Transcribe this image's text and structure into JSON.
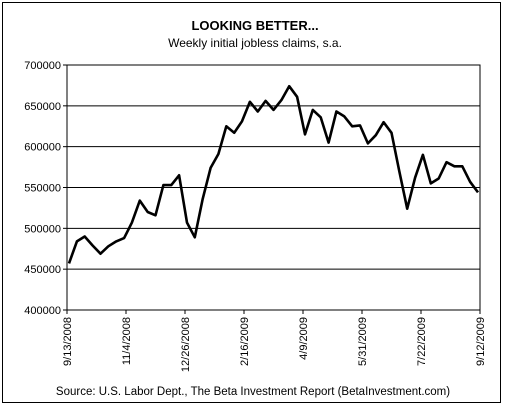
{
  "chart_data": {
    "type": "line",
    "title": "LOOKING BETTER...",
    "subtitle": "Weekly initial jobless claims, s.a.",
    "source": "Source: U.S. Labor Dept., The Beta Investment Report (BetaInvestment.com)",
    "ylim": [
      400000,
      700000
    ],
    "y_ticks": [
      "700000",
      "650000",
      "600000",
      "550000",
      "500000",
      "450000",
      "400000"
    ],
    "x_ticks": [
      "9/13/2008",
      "11/4/2008",
      "12/26/2008",
      "2/16/2009",
      "4/9/2009",
      "5/31/2009",
      "7/22/2009",
      "9/12/2009"
    ],
    "grid": true,
    "legend": "none",
    "line_color": "#000000",
    "series": [
      {
        "values": [
          457000,
          484000,
          490000,
          479000,
          469000,
          478000,
          484000,
          488000,
          507000,
          534000,
          520000,
          516000,
          553000,
          553000,
          565000,
          507000,
          489000,
          536000,
          574000,
          591000,
          625000,
          617000,
          631000,
          655000,
          643000,
          656000,
          645000,
          657000,
          674000,
          661000,
          615000,
          645000,
          636000,
          605000,
          643000,
          637000,
          625000,
          626000,
          604000,
          614000,
          630000,
          617000,
          570000,
          524000,
          562000,
          590000,
          555000,
          561000,
          581000,
          576000,
          576000,
          557000,
          544000
        ]
      }
    ]
  }
}
